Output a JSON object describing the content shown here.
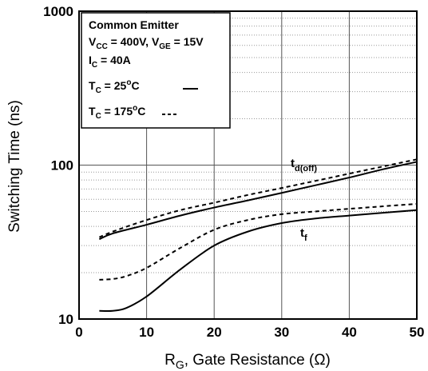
{
  "chart_data": {
    "type": "line",
    "ylabel": "Switching Time (ns)",
    "xlabel": {
      "base": "R",
      "sub": "G",
      "rest": ", Gate Resistance (Ω)"
    },
    "xlim": [
      0,
      50
    ],
    "ylim": [
      10,
      1000
    ],
    "yscale": "log",
    "xticks": [
      0,
      10,
      20,
      30,
      40,
      50
    ],
    "yticks": [
      10,
      100,
      1000
    ],
    "grid": true,
    "legend": {
      "placement": "top-left",
      "title": "Common Emitter",
      "line_vcc": {
        "a": "V",
        "a_sub": "CC",
        "b": " = 400V, V",
        "b_sub": "GE",
        "c": " = 15V"
      },
      "line_ic": {
        "a": "I",
        "a_sub": "C",
        "b": " = 40A"
      },
      "line_tc25": {
        "a": "T",
        "a_sub": "C",
        "b": " = 25",
        "sup": "o",
        "c": "C"
      },
      "line_tc175": {
        "a": "T",
        "a_sub": "C",
        "b": " = 175",
        "sup": "o",
        "c": "C"
      }
    },
    "series": [
      {
        "label": {
          "base": "t",
          "sub": "d(off)"
        },
        "condition": "TC=25C",
        "style": "solid",
        "x": [
          3,
          5,
          10,
          15,
          20,
          25,
          30,
          35,
          40,
          45,
          50
        ],
        "values": [
          33,
          36,
          41,
          47,
          53,
          59,
          66,
          74,
          83,
          94,
          105
        ]
      },
      {
        "label": {
          "base": "t",
          "sub": "d(off)"
        },
        "condition": "TC=175C",
        "style": "dashed",
        "x": [
          3,
          5,
          10,
          15,
          20,
          25,
          30,
          35,
          40,
          45,
          50
        ],
        "values": [
          34,
          37,
          44,
          51,
          57,
          64,
          71,
          79,
          88,
          98,
          109
        ]
      },
      {
        "label": {
          "base": "t",
          "sub": "f"
        },
        "condition": "TC=25C",
        "style": "solid",
        "x": [
          3,
          5,
          7,
          10,
          15,
          20,
          25,
          30,
          35,
          40,
          45,
          50
        ],
        "values": [
          11.3,
          11.3,
          11.8,
          14,
          21,
          30,
          37,
          42,
          45,
          47,
          49,
          51
        ]
      },
      {
        "label": {
          "base": "t",
          "sub": "f"
        },
        "condition": "TC=175C",
        "style": "dashed",
        "x": [
          3,
          5,
          7,
          10,
          15,
          20,
          25,
          30,
          35,
          40,
          45,
          50
        ],
        "values": [
          18,
          18.2,
          19,
          21.5,
          29,
          38,
          44,
          48,
          50,
          52,
          54,
          56
        ]
      }
    ]
  }
}
